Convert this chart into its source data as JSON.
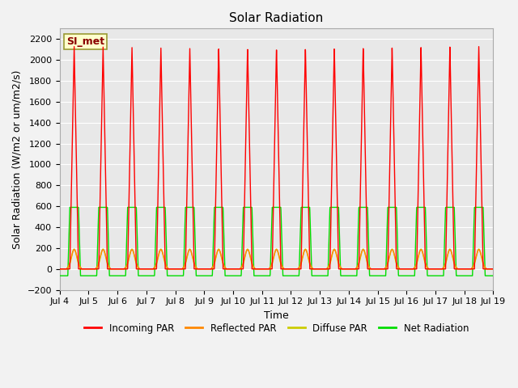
{
  "title": "Solar Radiation",
  "xlabel": "Time",
  "ylabel": "Solar Radiation (W/m2 or um/m2/s)",
  "ylim": [
    -200,
    2300
  ],
  "yticks": [
    -200,
    0,
    200,
    400,
    600,
    800,
    1000,
    1200,
    1400,
    1600,
    1800,
    2000,
    2200
  ],
  "xlim_start_day": 4,
  "xlim_end_day": 19,
  "xtick_days": [
    4,
    5,
    6,
    7,
    8,
    9,
    10,
    11,
    12,
    13,
    14,
    15,
    16,
    17,
    18,
    19
  ],
  "xtick_labels": [
    "Jul 4",
    "Jul 5",
    "Jul 6",
    "Jul 7",
    "Jul 8",
    "Jul 9",
    "Jul 10",
    "Jul 11",
    "Jul 12",
    "Jul 13",
    "Jul 14",
    "Jul 15",
    "Jul 16",
    "Jul 17",
    "Jul 18",
    "Jul 19"
  ],
  "station_label": "SI_met",
  "colors": {
    "incoming": "#ff0000",
    "reflected": "#ff8800",
    "diffuse": "#cccc00",
    "net": "#00dd00"
  },
  "legend_entries": [
    "Incoming PAR",
    "Reflected PAR",
    "Diffuse PAR",
    "Net Radiation"
  ],
  "background_color": "#e8e8e8",
  "grid_color": "#ffffff",
  "num_days": 15,
  "incoming_peak": 2130,
  "reflected_peak": 185,
  "diffuse_peak": 190,
  "net_peak": 590,
  "net_night": -65,
  "title_fontsize": 11,
  "axis_fontsize": 9,
  "tick_fontsize": 8
}
